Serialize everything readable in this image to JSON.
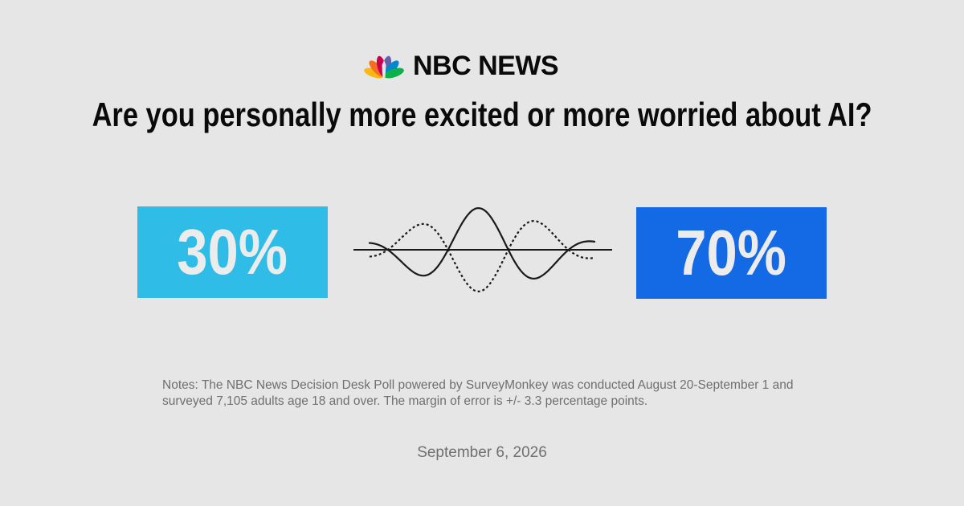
{
  "brand": {
    "name": "NBC NEWS",
    "logo_icon": "peacock-icon",
    "peacock_colors": [
      "#fcb711",
      "#f37021",
      "#cc004c",
      "#6460aa",
      "#0089d0",
      "#0db14b"
    ]
  },
  "question": "Are you personally more excited or more worried about AI?",
  "results": [
    {
      "value": "30%",
      "color": "#2fbde8"
    },
    {
      "value": "70%",
      "color": "#1469e5"
    }
  ],
  "divider_icon": "intertwined-wave-icon",
  "notes": "Notes: The NBC News Decision Desk Poll powered by SurveyMonkey was conducted August 20-September 1 and surveyed 7,105 adults age 18 and over. The margin of error is +/- 3.3 percentage points.",
  "date": "September 6, 2026",
  "colors": {
    "background": "#e6e6e6",
    "text": "#0a0a0a",
    "muted_text": "#6f6f6f"
  }
}
